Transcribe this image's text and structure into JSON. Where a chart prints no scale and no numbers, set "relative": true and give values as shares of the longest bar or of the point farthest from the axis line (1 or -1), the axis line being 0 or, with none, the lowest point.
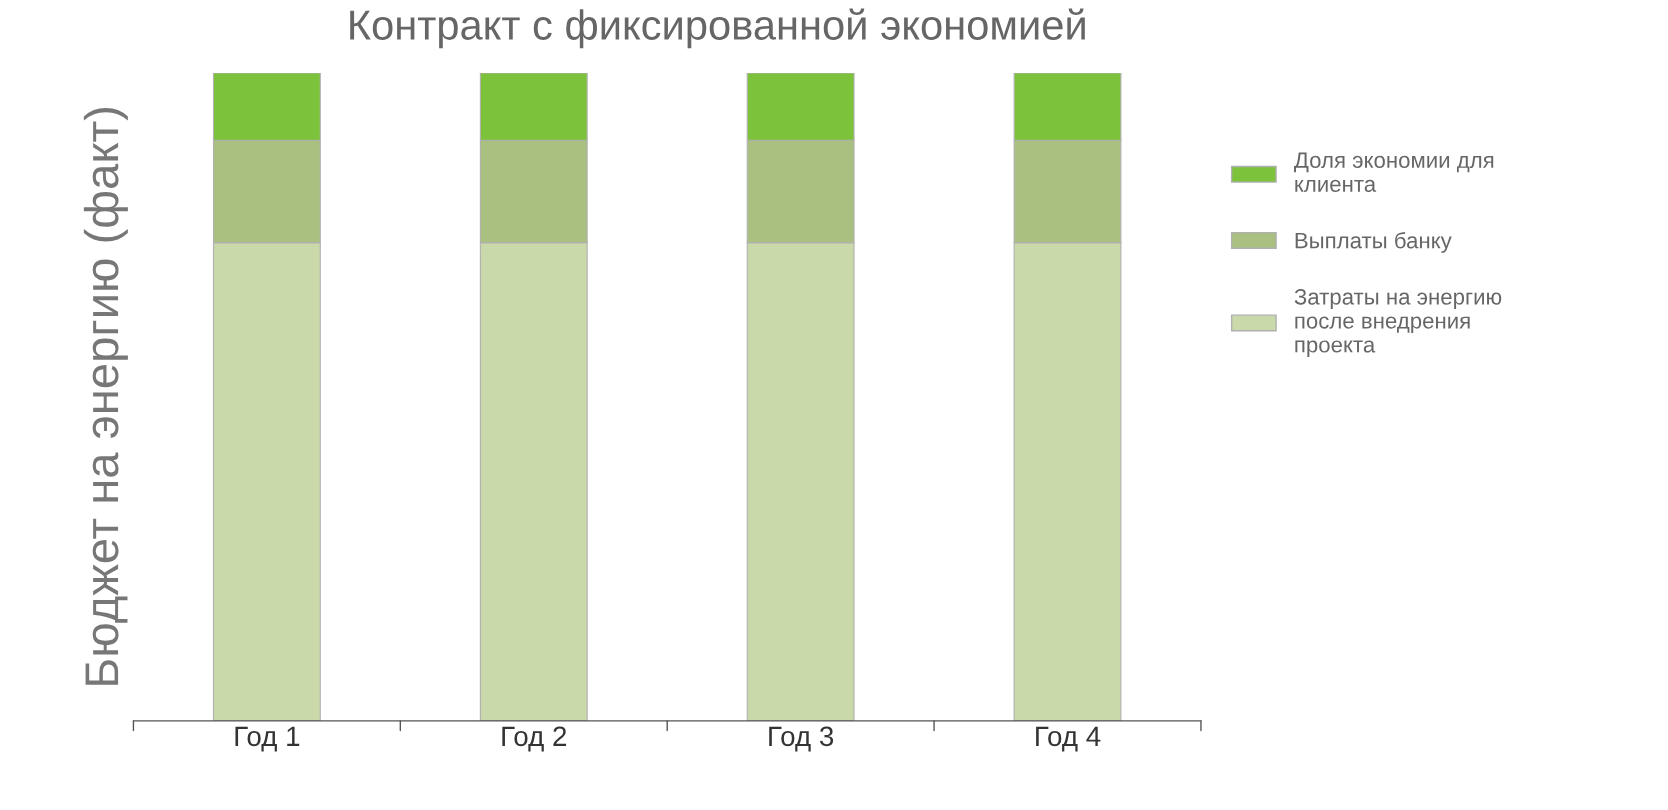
{
  "chart_data": {
    "type": "bar",
    "title": "Контракт с фиксированной экономией",
    "ylabel": "Бюджет на энергию (факт)",
    "categories": [
      "Год 1",
      "Год 2",
      "Год 3",
      "Год 4"
    ],
    "stacked": true,
    "relative": true,
    "legend": "right",
    "series": [
      {
        "name": "Затраты на энергию после внедрения проекта",
        "color": "#c9d9a9",
        "values": [
          0.738,
          0.738,
          0.738,
          0.738
        ]
      },
      {
        "name": "Выплаты банку",
        "color": "#a9c080",
        "values": [
          0.158,
          0.158,
          0.158,
          0.158
        ]
      },
      {
        "name": "Доля экономии для клиента",
        "color": "#7cc23a",
        "values": [
          0.104,
          0.104,
          0.104,
          0.104
        ]
      }
    ]
  }
}
